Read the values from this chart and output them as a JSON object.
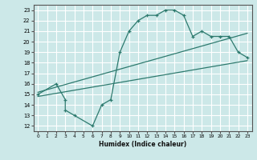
{
  "title": "",
  "xlabel": "Humidex (Indice chaleur)",
  "bg_color": "#cce8e8",
  "grid_color": "#ffffff",
  "line_color": "#2d7a6e",
  "xlim": [
    -0.5,
    23.5
  ],
  "ylim": [
    11.5,
    23.5
  ],
  "xticks": [
    0,
    1,
    2,
    3,
    4,
    5,
    6,
    7,
    8,
    9,
    10,
    11,
    12,
    13,
    14,
    15,
    16,
    17,
    18,
    19,
    20,
    21,
    22,
    23
  ],
  "yticks": [
    12,
    13,
    14,
    15,
    16,
    17,
    18,
    19,
    20,
    21,
    22,
    23
  ],
  "curve_x": [
    0,
    2,
    3,
    3,
    4,
    6,
    7,
    8,
    9,
    10,
    11,
    12,
    13,
    14,
    15,
    16,
    17,
    18,
    19,
    20,
    21,
    22,
    23
  ],
  "curve_y": [
    15,
    16,
    14.5,
    13.5,
    13,
    12,
    14,
    14.5,
    19,
    21,
    22,
    22.5,
    22.5,
    23,
    23,
    22.5,
    20.5,
    21,
    20.5,
    20.5,
    20.5,
    19,
    18.5
  ],
  "reg_line1_x": [
    0,
    23
  ],
  "reg_line1_y": [
    14.8,
    18.2
  ],
  "reg_line2_x": [
    0,
    23
  ],
  "reg_line2_y": [
    15.2,
    20.8
  ]
}
